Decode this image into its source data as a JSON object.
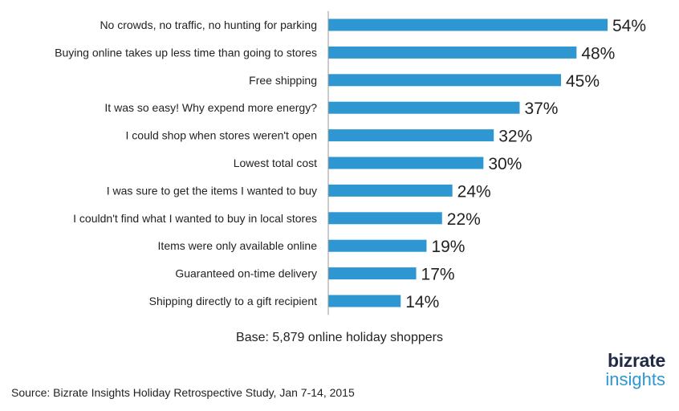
{
  "chart_data": {
    "type": "bar",
    "orientation": "horizontal",
    "categories": [
      "No crowds, no traffic, no hunting for parking",
      "Buying online takes up less time than going to stores",
      "Free shipping",
      "It was so easy! Why expend more energy?",
      "I could shop when stores weren't open",
      "Lowest total cost",
      "I was sure to get the items I wanted to buy",
      "I couldn't find what I wanted to buy in local stores",
      "Items were only available online",
      "Guaranteed on-time delivery",
      "Shipping directly to a gift recipient"
    ],
    "values": [
      54,
      48,
      45,
      37,
      32,
      30,
      24,
      22,
      19,
      17,
      14
    ],
    "value_labels": [
      "54%",
      "48%",
      "45%",
      "37%",
      "32%",
      "30%",
      "24%",
      "22%",
      "19%",
      "17%",
      "14%"
    ],
    "unit": "%",
    "xlim": [
      0,
      54
    ],
    "grid": false,
    "legend": "none",
    "bar_color": "#2e97d1"
  },
  "notes": {
    "base": "Base: 5,879 online holiday shoppers",
    "source": "Source: Bizrate Insights Holiday Retrospective Study, Jan 7-14, 2015"
  },
  "logo": {
    "line1": "bizrate",
    "line2": "insights",
    "color_top": "#1f2a44",
    "color_bottom": "#2e97d1"
  }
}
